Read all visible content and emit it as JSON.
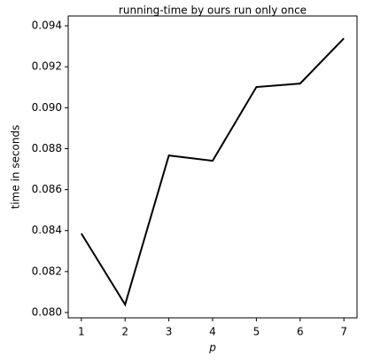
{
  "chart_data": {
    "type": "line",
    "title": "running-time by ours run only once",
    "x_label": "p",
    "y_label": "time in seconds",
    "x": [
      1,
      2,
      3,
      4,
      5,
      6,
      7
    ],
    "series": [
      {
        "name": "running-time",
        "color": "#000000",
        "values": [
          0.08386,
          0.08039,
          0.08767,
          0.08741,
          0.09101,
          0.09118,
          0.09339
        ]
      }
    ],
    "xlim": [
      0.7,
      7.3
    ],
    "ylim": [
      0.07974,
      0.09448
    ],
    "xticks": [
      1,
      2,
      3,
      4,
      5,
      6,
      7
    ],
    "yticks": [
      {
        "value": 0.08,
        "label": "0.080"
      },
      {
        "value": 0.082,
        "label": "0.082"
      },
      {
        "value": 0.084,
        "label": "0.084"
      },
      {
        "value": 0.086,
        "label": "0.086"
      },
      {
        "value": 0.088,
        "label": "0.088"
      },
      {
        "value": 0.09,
        "label": "0.090"
      },
      {
        "value": 0.092,
        "label": "0.092"
      },
      {
        "value": 0.094,
        "label": "0.094"
      }
    ],
    "grid": false
  }
}
